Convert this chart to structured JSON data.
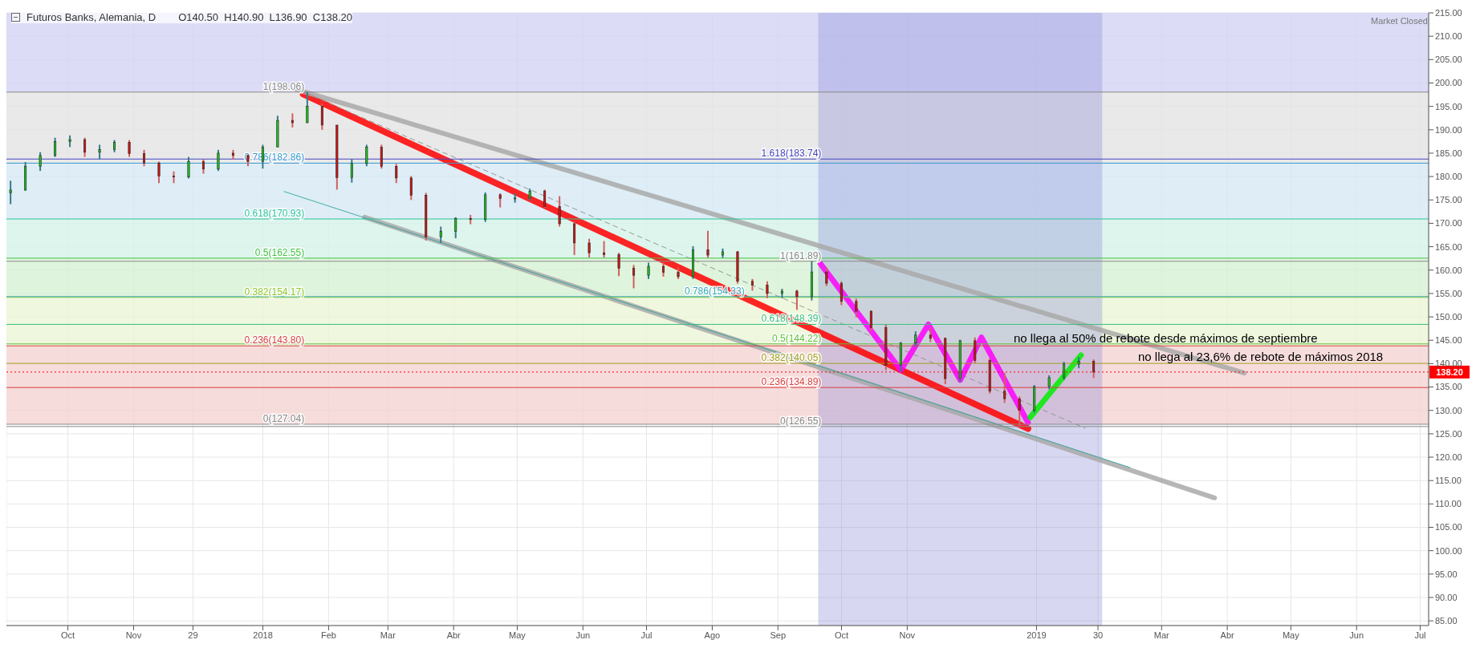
{
  "chart_data": {
    "type": "candlestick",
    "title": "Futuros Banks, Alemania, D",
    "subtitle": "O140.50  H140.90  L136.90  C138.20",
    "annotations": [
      "Market Closed",
      "no llega al 50% de rebote desde máximos de septiembre",
      "no llega al 23,6% de rebote de máximos 2018"
    ],
    "x": [
      "2017-09-04",
      "2017-09-11",
      "2017-09-18",
      "2017-09-25",
      "2017-10-02",
      "2017-10-09",
      "2017-10-16",
      "2017-10-23",
      "2017-10-30",
      "2017-11-06",
      "2017-11-13",
      "2017-11-20",
      "2017-11-27",
      "2017-12-04",
      "2017-12-11",
      "2017-12-18",
      "2017-12-25",
      "2018-01-01",
      "2018-01-08",
      "2018-01-15",
      "2018-01-22",
      "2018-01-29",
      "2018-02-05",
      "2018-02-12",
      "2018-02-19",
      "2018-02-26",
      "2018-03-05",
      "2018-03-12",
      "2018-03-19",
      "2018-03-26",
      "2018-04-02",
      "2018-04-09",
      "2018-04-16",
      "2018-04-23",
      "2018-04-30",
      "2018-05-07",
      "2018-05-14",
      "2018-05-21",
      "2018-05-28",
      "2018-06-04",
      "2018-06-11",
      "2018-06-18",
      "2018-06-25",
      "2018-07-02",
      "2018-07-09",
      "2018-07-16",
      "2018-07-23",
      "2018-07-30",
      "2018-08-06",
      "2018-08-13",
      "2018-08-20",
      "2018-08-27",
      "2018-09-03",
      "2018-09-10",
      "2018-09-17",
      "2018-09-24",
      "2018-10-01",
      "2018-10-08",
      "2018-10-15",
      "2018-10-22",
      "2018-10-29",
      "2018-11-05",
      "2018-11-12",
      "2018-11-19",
      "2018-11-26",
      "2018-12-03",
      "2018-12-10",
      "2018-12-17",
      "2018-12-24",
      "2018-12-31",
      "2019-01-07",
      "2019-01-14",
      "2019-01-21",
      "2019-01-28"
    ],
    "ohlc": [
      [
        176.5,
        179.1,
        174.1,
        177.1
      ],
      [
        177.1,
        183.1,
        177,
        182.2
      ],
      [
        182.2,
        185.2,
        181.2,
        184.5
      ],
      [
        184.5,
        188.3,
        184.2,
        187.5
      ],
      [
        187.5,
        188.8,
        186.3,
        187.9
      ],
      [
        187.9,
        188.3,
        184.2,
        185.2
      ],
      [
        185.2,
        186.8,
        183.7,
        185.8
      ],
      [
        185.8,
        187.8,
        185.2,
        187.3
      ],
      [
        187.3,
        187.8,
        184.2,
        184.9
      ],
      [
        184.9,
        185.7,
        182.2,
        182.9
      ],
      [
        182.9,
        183.2,
        178.6,
        180.1
      ],
      [
        180.1,
        181.1,
        178.6,
        179.9
      ],
      [
        179.9,
        184.2,
        179.6,
        183.2
      ],
      [
        183.2,
        183.7,
        180.6,
        181.6
      ],
      [
        181.6,
        185.7,
        181.2,
        185
      ],
      [
        185,
        185.7,
        183.7,
        184.5
      ],
      [
        184.5,
        184.7,
        182.2,
        183.2
      ],
      [
        183.2,
        186.8,
        181.7,
        186.3
      ],
      [
        186.3,
        193,
        186.3,
        192
      ],
      [
        192,
        193.5,
        190.5,
        191.5
      ],
      [
        191.5,
        198.06,
        191.5,
        195
      ],
      [
        195,
        195.6,
        190,
        191
      ],
      [
        191,
        191,
        177.2,
        179.8
      ],
      [
        179.8,
        183.7,
        178.7,
        182.8
      ],
      [
        182.8,
        186.8,
        182.2,
        186.3
      ],
      [
        186.3,
        186.8,
        181.7,
        182.2
      ],
      [
        182.2,
        182.7,
        178.6,
        179.7
      ],
      [
        179.7,
        180.1,
        175,
        176
      ],
      [
        176,
        176.5,
        166.3,
        167.1
      ],
      [
        167.1,
        169.3,
        165.8,
        168.3
      ],
      [
        168.3,
        171.3,
        166.8,
        171
      ],
      [
        171,
        171.8,
        169.8,
        170.8
      ],
      [
        170.8,
        176.6,
        170.3,
        176.1
      ],
      [
        176.1,
        176.4,
        173.4,
        175.3
      ],
      [
        175.3,
        176.4,
        174.4,
        175.4
      ],
      [
        175.4,
        177.4,
        174.9,
        176.9
      ],
      [
        176.9,
        177.2,
        173.3,
        173.6
      ],
      [
        173.6,
        175.8,
        169.3,
        169.9
      ],
      [
        169.9,
        170.3,
        163.2,
        165.8
      ],
      [
        165.8,
        166.7,
        162.7,
        163.7
      ],
      [
        163.7,
        166.2,
        162.7,
        163.3
      ],
      [
        163.3,
        163.7,
        158.7,
        160.4
      ],
      [
        160.4,
        161.1,
        156.1,
        158.9
      ],
      [
        158.9,
        161.6,
        158.1,
        160.8
      ],
      [
        160.8,
        161.6,
        158.6,
        159.5
      ],
      [
        159.5,
        160.6,
        158.1,
        158.6
      ],
      [
        158.6,
        165.1,
        158.1,
        164.3
      ],
      [
        164.3,
        168.4,
        162.6,
        163.2
      ],
      [
        163.2,
        164.6,
        162.6,
        163.9
      ],
      [
        163.9,
        164.1,
        157.1,
        157.6
      ],
      [
        157.6,
        158.1,
        155.6,
        156.8
      ],
      [
        156.8,
        157.6,
        154,
        155
      ],
      [
        155,
        156,
        154,
        155.5
      ],
      [
        155.5,
        155.8,
        151.5,
        154.3
      ],
      [
        154.3,
        161.89,
        153.5,
        159.6
      ],
      [
        159.6,
        160.6,
        156.6,
        157.2
      ],
      [
        157.2,
        157.6,
        152.5,
        153.3
      ],
      [
        153.3,
        153.9,
        149.9,
        151.2
      ],
      [
        151.2,
        151.4,
        146.9,
        147.7
      ],
      [
        147.7,
        148.3,
        138.6,
        139.6
      ],
      [
        139.6,
        144.6,
        138.2,
        144.4
      ],
      [
        144.4,
        146.9,
        143.6,
        146.1
      ],
      [
        146.1,
        147.6,
        144.6,
        145.4
      ],
      [
        145.4,
        145.6,
        135.6,
        136.8
      ],
      [
        136.8,
        145.1,
        136.1,
        144.9
      ],
      [
        144.9,
        145.6,
        140.1,
        140.7
      ],
      [
        140.7,
        141.1,
        133.6,
        134.1
      ],
      [
        134.1,
        138,
        131.6,
        132.5
      ],
      [
        132.5,
        133,
        126.55,
        130
      ],
      [
        130,
        135.4,
        129.5,
        135.1
      ],
      [
        135.1,
        137.5,
        134.5,
        137
      ],
      [
        137,
        140.4,
        136.5,
        139.9
      ],
      [
        139.9,
        141.4,
        139,
        140.5
      ],
      [
        140.5,
        140.9,
        136.9,
        138.2
      ]
    ],
    "series": [
      {
        "type": "line",
        "color": "#ff0000",
        "x": [
          "2018-01-20",
          "2018-12-28"
        ],
        "values": [
          197.6,
          126.1
        ]
      },
      {
        "type": "line",
        "color": "#a9a9a9",
        "x": [
          "2018-01-17",
          "2019-04-09"
        ],
        "values": [
          198.6,
          138
        ]
      },
      {
        "type": "line",
        "color": "#a9a9a9",
        "x": [
          "2018-02-18",
          "2019-03-26"
        ],
        "values": [
          171.3,
          111.3
        ]
      },
      {
        "type": "line",
        "color": "#2aa198",
        "x": [
          "2018-01-11",
          "2019-02-14"
        ],
        "values": [
          176.8,
          117.8
        ]
      },
      {
        "type": "line",
        "color": "#8a8a8a",
        "line_style": "dashed",
        "x": [
          "2018-01-17",
          "2019-01-24"
        ],
        "values": [
          198.6,
          126.2
        ]
      },
      {
        "type": "line",
        "color": "#ff00ff",
        "x": [
          "2018-09-21",
          "2018-10-29",
          "2018-11-11",
          "2018-11-26",
          "2018-12-06",
          "2018-12-28"
        ],
        "values": [
          161.4,
          138.6,
          148.4,
          136.5,
          145.6,
          127.4
        ]
      },
      {
        "type": "line",
        "color": "#00ee00",
        "x": [
          "2018-12-29",
          "2019-01-22"
        ],
        "values": [
          128.5,
          141.8
        ]
      }
    ],
    "bands": [
      {
        "axis": "y",
        "from": 198.06,
        "to": 215,
        "color": "#d3d3f5"
      },
      {
        "axis": "y",
        "from": 182.86,
        "to": 198.06,
        "color": "#e4e4e4"
      },
      {
        "axis": "y",
        "from": 170.93,
        "to": 182.86,
        "color": "#d6e9f4"
      },
      {
        "axis": "y",
        "from": 162.55,
        "to": 170.93,
        "color": "#d5f2e8"
      },
      {
        "axis": "y",
        "from": 154.17,
        "to": 162.55,
        "color": "#d7f1d3"
      },
      {
        "axis": "y",
        "from": 143.8,
        "to": 154.17,
        "color": "#ebf5d6"
      },
      {
        "axis": "y",
        "from": 127.04,
        "to": 143.8,
        "color": "#f5d3d3"
      },
      {
        "axis": "x",
        "from": "2018-09-20",
        "to": "2019-02-01",
        "color": "#8c8cd8"
      }
    ],
    "ref_lines": [
      {
        "axis": "y",
        "value": 198.06,
        "label": "1(198.06)",
        "color": "#888888"
      },
      {
        "axis": "y",
        "value": 182.86,
        "label": "0.786(182.86)",
        "color": "#3a9bd0"
      },
      {
        "axis": "y",
        "value": 170.93,
        "label": "0.618(170.93)",
        "color": "#2ec49a"
      },
      {
        "axis": "y",
        "value": 162.55,
        "label": "0.5(162.55)",
        "color": "#45c145"
      },
      {
        "axis": "y",
        "value": 154.17,
        "label": "0.382(154.17)",
        "color": "#8fc628"
      },
      {
        "axis": "y",
        "value": 143.8,
        "label": "0.236(143.80)",
        "color": "#d94040"
      },
      {
        "axis": "y",
        "value": 127.04,
        "label": "0(127.04)",
        "color": "#888888"
      },
      {
        "axis": "y",
        "value": 183.74,
        "label": "1.618(183.74)",
        "color": "#4545c0"
      },
      {
        "axis": "y",
        "value": 161.89,
        "label": "1(161.89)",
        "color": "#888888"
      },
      {
        "axis": "y",
        "value": 154.33,
        "label": "0.786(154.33)",
        "color": "#3aa9bd"
      },
      {
        "axis": "y",
        "value": 148.39,
        "label": "0.618(148.39)",
        "color": "#3ac080"
      },
      {
        "axis": "y",
        "value": 144.22,
        "label": "0.5(144.22)",
        "color": "#60c040"
      },
      {
        "axis": "y",
        "value": 140.05,
        "label": "0.382(140.05)",
        "color": "#a0a020"
      },
      {
        "axis": "y",
        "value": 134.89,
        "label": "0.236(134.89)",
        "color": "#d94040"
      },
      {
        "axis": "y",
        "value": 126.55,
        "label": "0(126.55)",
        "color": "#888888"
      },
      {
        "axis": "y",
        "value": 138.2,
        "label": "138.20",
        "color": "#ff0000",
        "line_style": "dotted"
      }
    ],
    "xlim": [
      "2017-09-02",
      "2019-07-05"
    ],
    "xticks": [
      {
        "value": "2017-10-01",
        "label": "Oct"
      },
      {
        "value": "2017-11-01",
        "label": "Nov"
      },
      {
        "value": "2017-11-29",
        "label": "29"
      },
      {
        "value": "2018-01-01",
        "label": "2018"
      },
      {
        "value": "2018-02-01",
        "label": "Feb"
      },
      {
        "value": "2018-03-01",
        "label": "Mar"
      },
      {
        "value": "2018-04-01",
        "label": "Abr"
      },
      {
        "value": "2018-05-01",
        "label": "May"
      },
      {
        "value": "2018-06-01",
        "label": "Jun"
      },
      {
        "value": "2018-07-01",
        "label": "Jul"
      },
      {
        "value": "2018-08-01",
        "label": "Ago"
      },
      {
        "value": "2018-09-01",
        "label": "Sep"
      },
      {
        "value": "2018-10-01",
        "label": "Oct"
      },
      {
        "value": "2018-11-01",
        "label": "Nov"
      },
      {
        "value": "2019-01-01",
        "label": "2019"
      },
      {
        "value": "2019-01-30",
        "label": "30"
      },
      {
        "value": "2019-03-01",
        "label": "Mar"
      },
      {
        "value": "2019-04-01",
        "label": "Abr"
      },
      {
        "value": "2019-05-01",
        "label": "May"
      },
      {
        "value": "2019-06-01",
        "label": "Jun"
      },
      {
        "value": "2019-07-01",
        "label": "Jul"
      }
    ],
    "ylim": [
      84,
      215
    ],
    "yticks": [
      {
        "value": 85,
        "label": "85.00"
      },
      {
        "value": 90,
        "label": "90.00"
      },
      {
        "value": 95,
        "label": "95.00"
      },
      {
        "value": 100,
        "label": "100.00"
      },
      {
        "value": 105,
        "label": "105.00"
      },
      {
        "value": 110,
        "label": "110.00"
      },
      {
        "value": 115,
        "label": "115.00"
      },
      {
        "value": 120,
        "label": "120.00"
      },
      {
        "value": 125,
        "label": "125.00"
      },
      {
        "value": 130,
        "label": "130.00"
      },
      {
        "value": 135,
        "label": "135.00"
      },
      {
        "value": 140,
        "label": "140.00"
      },
      {
        "value": 145,
        "label": "145.00"
      },
      {
        "value": 150,
        "label": "150.00"
      },
      {
        "value": 155,
        "label": "155.00"
      },
      {
        "value": 160,
        "label": "160.00"
      },
      {
        "value": 165,
        "label": "165.00"
      },
      {
        "value": 170,
        "label": "170.00"
      },
      {
        "value": 175,
        "label": "175.00"
      },
      {
        "value": 180,
        "label": "180.00"
      },
      {
        "value": 185,
        "label": "185.00"
      },
      {
        "value": 190,
        "label": "190.00"
      },
      {
        "value": 195,
        "label": "195.00"
      },
      {
        "value": 200,
        "label": "200.00"
      },
      {
        "value": 205,
        "label": "205.00"
      },
      {
        "value": 210,
        "label": "210.00"
      },
      {
        "value": 215,
        "label": "215.00"
      }
    ],
    "grid": true,
    "marker": "none"
  }
}
